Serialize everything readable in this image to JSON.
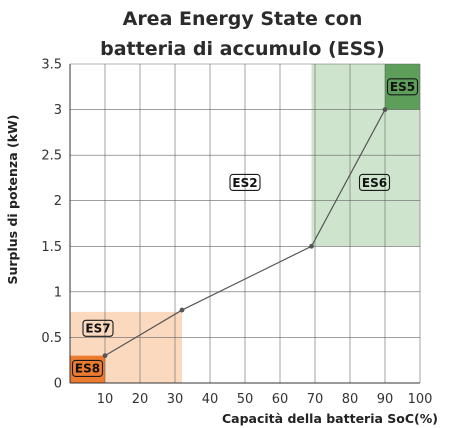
{
  "chart_data": {
    "type": "line",
    "title": "Area Energy State con batteria di accumulo (ESS)",
    "title_lines": [
      "Area Energy State con",
      "batteria di accumulo (ESS)"
    ],
    "xlabel": "Capacità della batteria SoC(%)",
    "ylabel": "Surplus di potenza (kW)",
    "xlim": [
      0,
      100
    ],
    "ylim": [
      0,
      3.5
    ],
    "x_ticks": [
      {
        "value": 10,
        "label": "10"
      },
      {
        "value": 20,
        "label": "20"
      },
      {
        "value": 30,
        "label": "30"
      },
      {
        "value": 40,
        "label": "40"
      },
      {
        "value": 50,
        "label": "50"
      },
      {
        "value": 60,
        "label": "60"
      },
      {
        "value": 70,
        "label": "70"
      },
      {
        "value": 80,
        "label": "80"
      },
      {
        "value": 90,
        "label": "90"
      },
      {
        "value": 100,
        "label": "100"
      }
    ],
    "y_ticks": [
      {
        "value": 0,
        "label": "0"
      },
      {
        "value": 0.5,
        "label": "0.5"
      },
      {
        "value": 1,
        "label": "1"
      },
      {
        "value": 1.5,
        "label": "1.5"
      },
      {
        "value": 2,
        "label": "2"
      },
      {
        "value": 2.5,
        "label": "2.5"
      },
      {
        "value": 3,
        "label": "3"
      },
      {
        "value": 3.5,
        "label": "3.5"
      }
    ],
    "grid": true,
    "series": [
      {
        "x": [
          10,
          32,
          69,
          90
        ],
        "y": [
          0.3,
          0.8,
          1.5,
          3.0
        ],
        "color": "#555555"
      }
    ],
    "zones": [
      {
        "label": "ES7",
        "x": [
          0,
          32
        ],
        "y": [
          0,
          0.78
        ],
        "color": "#fad9bf"
      },
      {
        "label": "ES8",
        "x": [
          0,
          10
        ],
        "y": [
          0,
          0.3
        ],
        "color": "#ec7a2f"
      },
      {
        "label": "ES6",
        "x": [
          69,
          100
        ],
        "y": [
          1.5,
          3.5
        ],
        "color": "#cfe4cd"
      },
      {
        "label": "ES5",
        "x": [
          90,
          100
        ],
        "y": [
          3.0,
          3.5
        ],
        "color": "#5c9e5a"
      }
    ],
    "zone_labels": [
      {
        "label": "ES2",
        "x": 50,
        "y": 2.2
      },
      {
        "label": "ES6",
        "x": 87,
        "y": 2.2
      },
      {
        "label": "ES5",
        "x": 95,
        "y": 3.25
      },
      {
        "label": "ES7",
        "x": 8,
        "y": 0.6
      },
      {
        "label": "ES8",
        "x": 5,
        "y": 0.16
      }
    ]
  }
}
